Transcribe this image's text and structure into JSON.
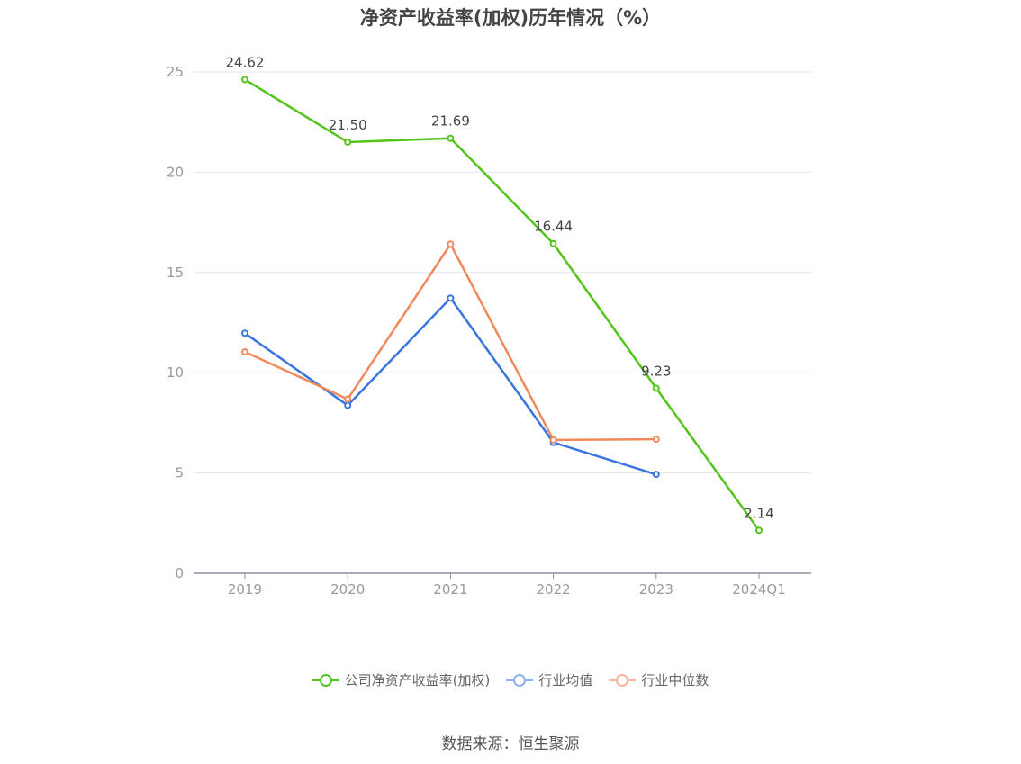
{
  "chart_data": {
    "type": "line",
    "title": "净资产收益率(加权)历年情况（%）",
    "categories": [
      "2019",
      "2020",
      "2021",
      "2022",
      "2023",
      "2024Q1"
    ],
    "ylim": [
      0,
      25
    ],
    "yticks": [
      0,
      5,
      10,
      15,
      20,
      25
    ],
    "grid": true,
    "legend_position": "bottom",
    "series": [
      {
        "name": "公司净资产收益率(加权)",
        "color": "#52c41a",
        "values": [
          24.62,
          21.5,
          21.69,
          16.44,
          9.23,
          2.14
        ],
        "labels": [
          "24.62",
          "21.50",
          "21.69",
          "16.44",
          "9.23",
          "2.14"
        ]
      },
      {
        "name": "行业均值",
        "color": "#3a74e0",
        "values": [
          11.97,
          8.37,
          13.72,
          6.52,
          4.93,
          null
        ]
      },
      {
        "name": "行业中位数",
        "color": "#f0895a",
        "values": [
          11.04,
          8.68,
          16.41,
          6.65,
          6.68,
          null
        ]
      }
    ]
  },
  "legend": {
    "items": [
      {
        "label": "公司净资产收益率(加权)",
        "color": "#52c41a"
      },
      {
        "label": "行业均值",
        "color": "#8fb1ee"
      },
      {
        "label": "行业中位数",
        "color": "#f7b49b"
      }
    ]
  },
  "source": "数据来源：恒生聚源"
}
